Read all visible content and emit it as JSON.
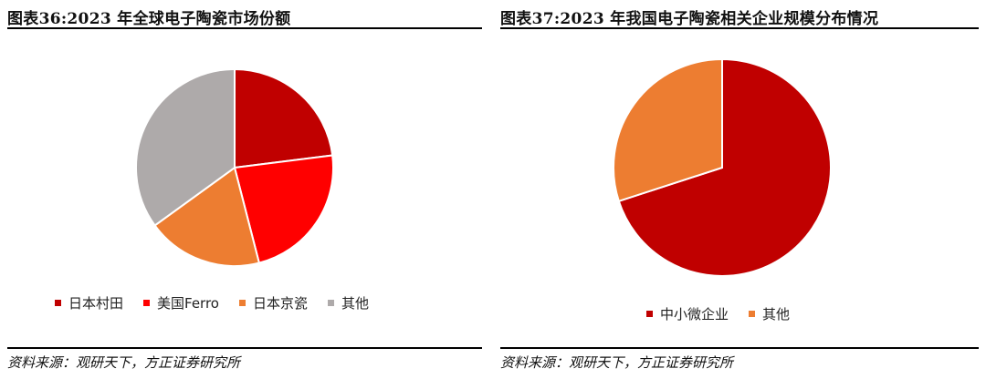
{
  "chart_data": [
    {
      "type": "pie",
      "title": "图表36:2023 年全球电子陶瓷市场份额",
      "source": "资料来源：观研天下，方正证券研究所",
      "legend_position": "bottom",
      "slices": [
        {
          "label": "日本村田",
          "value": 23,
          "color": "#C00000"
        },
        {
          "label": "美国Ferro",
          "value": 23,
          "color": "#FF0000"
        },
        {
          "label": "日本京瓷",
          "value": 19,
          "color": "#ED7D31"
        },
        {
          "label": "其他",
          "value": 35,
          "color": "#AEAAAA"
        }
      ]
    },
    {
      "type": "pie",
      "title": "图表37:2023 年我国电子陶瓷相关企业规模分布情况",
      "source": "资料来源：观研天下，方正证券研究所",
      "legend_position": "bottom",
      "slices": [
        {
          "label": "中小微企业",
          "value": 70,
          "color": "#C00000"
        },
        {
          "label": "其他",
          "value": 30,
          "color": "#ED7D31"
        }
      ]
    }
  ]
}
